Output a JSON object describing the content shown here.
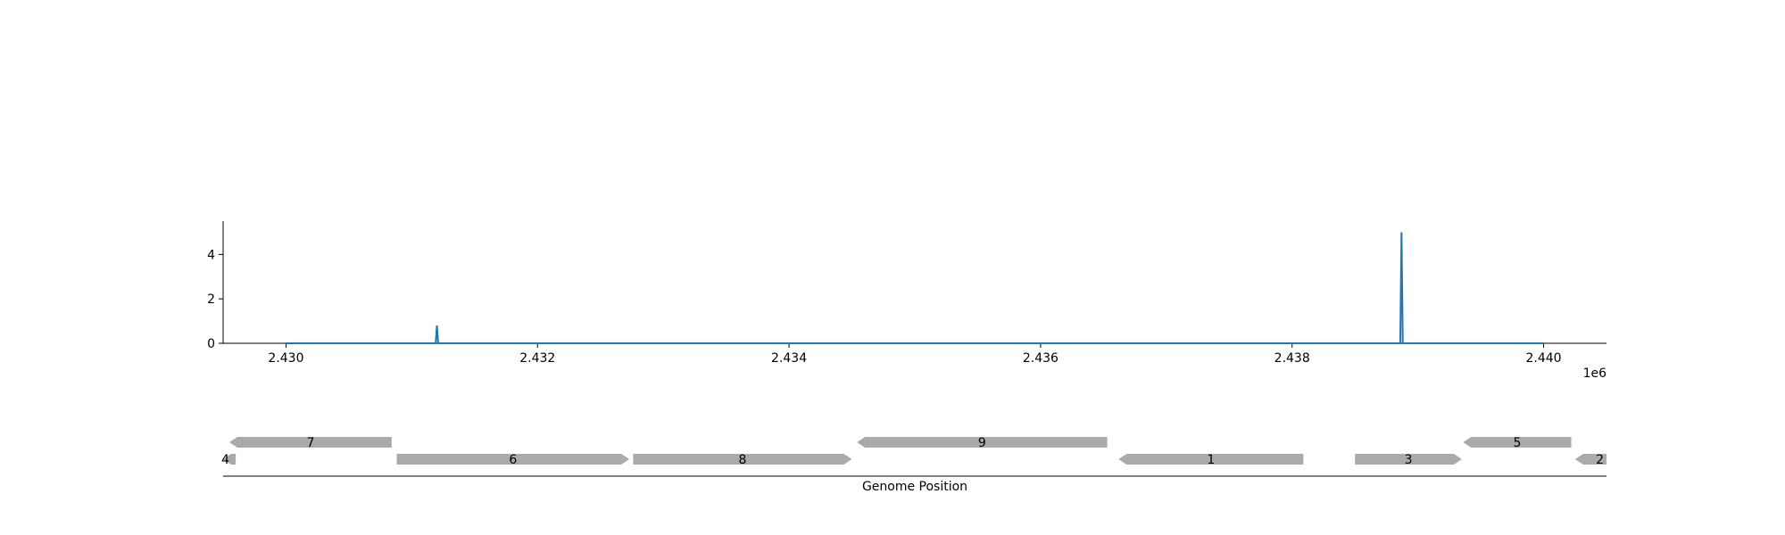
{
  "chart_data": [
    {
      "type": "line",
      "title": "",
      "xlabel": "",
      "ylabel": "",
      "x_offset_label": "1e6",
      "xlim": [
        2429500,
        2440500
      ],
      "ylim": [
        0,
        5.5
      ],
      "xticks": [
        2430000,
        2432000,
        2434000,
        2436000,
        2438000,
        2440000
      ],
      "xtick_labels": [
        "2.430",
        "2.432",
        "2.434",
        "2.436",
        "2.438",
        "2.440"
      ],
      "yticks": [
        0,
        2,
        4
      ],
      "ytick_labels": [
        "0",
        "2",
        "4"
      ],
      "series": [
        {
          "color": "#1f77b4",
          "x": [
            2430000,
            2431190,
            2431200,
            2431210,
            2438860,
            2438870,
            2438880,
            2440000
          ],
          "y": [
            0,
            0,
            0.8,
            0,
            0,
            5,
            0,
            0
          ]
        }
      ],
      "grid": false
    },
    {
      "type": "gene-track",
      "xlabel": "Genome Position",
      "xlim": [
        2429500,
        2440500
      ],
      "gene_color": "#aaaaaa",
      "genes": [
        {
          "label": "4",
          "start": 2429500,
          "end": 2429600,
          "strand": -1,
          "row": 0
        },
        {
          "label": "7",
          "start": 2429550,
          "end": 2430840,
          "strand": -1,
          "row": 1
        },
        {
          "label": "6",
          "start": 2430880,
          "end": 2432730,
          "strand": 1,
          "row": 0
        },
        {
          "label": "8",
          "start": 2432760,
          "end": 2434500,
          "strand": 1,
          "row": 0
        },
        {
          "label": "9",
          "start": 2434540,
          "end": 2436530,
          "strand": -1,
          "row": 1
        },
        {
          "label": "1",
          "start": 2436620,
          "end": 2438090,
          "strand": -1,
          "row": 0
        },
        {
          "label": "3",
          "start": 2438500,
          "end": 2439350,
          "strand": 1,
          "row": 0
        },
        {
          "label": "5",
          "start": 2439360,
          "end": 2440220,
          "strand": -1,
          "row": 1
        },
        {
          "label": "2",
          "start": 2440250,
          "end": 2440500,
          "strand": -1,
          "row": 0
        }
      ]
    }
  ]
}
